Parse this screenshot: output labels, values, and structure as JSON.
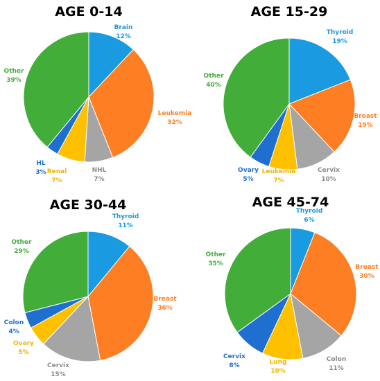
{
  "chart_data": [
    {
      "type": "pie",
      "title": "AGE 0-14",
      "slices": [
        {
          "label": "Brain",
          "value": 12,
          "pct_label": "12%",
          "color": "#1a9ae0",
          "text_color": "#1a9ae0"
        },
        {
          "label": "Leukemia",
          "value": 32,
          "pct_label": "32%",
          "color": "#fd7e23",
          "text_color": "#fd7e23"
        },
        {
          "label": "NHL",
          "value": 7,
          "pct_label": "7%",
          "color": "#a5a5a5",
          "text_color": "#8c8c8c"
        },
        {
          "label": "Renal",
          "value": 7,
          "pct_label": "7%",
          "color": "#ffc000",
          "text_color": "#f0b400"
        },
        {
          "label": "HL",
          "value": 3,
          "pct_label": "3%",
          "color": "#1f6fd1",
          "text_color": "#1f6fd1"
        },
        {
          "label": "Other",
          "value": 39,
          "pct_label": "39%",
          "color": "#43ad3a",
          "text_color": "#43ad3a"
        }
      ]
    },
    {
      "type": "pie",
      "title": "AGE 15-29",
      "slices": [
        {
          "label": "Thyroid",
          "value": 19,
          "pct_label": "19%",
          "color": "#1a9ae0",
          "text_color": "#1a9ae0"
        },
        {
          "label": "Breast",
          "value": 19,
          "pct_label": "19%",
          "color": "#fd7e23",
          "text_color": "#fd7e23"
        },
        {
          "label": "Cervix",
          "value": 10,
          "pct_label": "10%",
          "color": "#a5a5a5",
          "text_color": "#8c8c8c"
        },
        {
          "label": "Leukemia",
          "value": 7,
          "pct_label": "7%",
          "color": "#ffc000",
          "text_color": "#f0b400"
        },
        {
          "label": "Ovary",
          "value": 5,
          "pct_label": "5%",
          "color": "#1f6fd1",
          "text_color": "#1f6fd1"
        },
        {
          "label": "Other",
          "value": 40,
          "pct_label": "40%",
          "color": "#43ad3a",
          "text_color": "#43ad3a"
        }
      ]
    },
    {
      "type": "pie",
      "title": "AGE 30-44",
      "slices": [
        {
          "label": "Thyroid",
          "value": 11,
          "pct_label": "11%",
          "color": "#1a9ae0",
          "text_color": "#1a9ae0"
        },
        {
          "label": "Breast",
          "value": 36,
          "pct_label": "36%",
          "color": "#fd7e23",
          "text_color": "#fd7e23"
        },
        {
          "label": "Cervix",
          "value": 15,
          "pct_label": "15%",
          "color": "#a5a5a5",
          "text_color": "#8c8c8c"
        },
        {
          "label": "Ovary",
          "value": 5,
          "pct_label": "5%",
          "color": "#ffc000",
          "text_color": "#f0b400"
        },
        {
          "label": "Colon",
          "value": 4,
          "pct_label": "4%",
          "color": "#1f6fd1",
          "text_color": "#1f6fd1"
        },
        {
          "label": "Other",
          "value": 29,
          "pct_label": "29%",
          "color": "#43ad3a",
          "text_color": "#43ad3a"
        }
      ]
    },
    {
      "type": "pie",
      "title": "AGE 45-74",
      "slices": [
        {
          "label": "Thyroid",
          "value": 6,
          "pct_label": "6%",
          "color": "#1a9ae0",
          "text_color": "#1a9ae0"
        },
        {
          "label": "Breast",
          "value": 30,
          "pct_label": "30%",
          "color": "#fd7e23",
          "text_color": "#fd7e23"
        },
        {
          "label": "Colon",
          "value": 11,
          "pct_label": "11%",
          "color": "#a5a5a5",
          "text_color": "#8c8c8c"
        },
        {
          "label": "Lung",
          "value": 10,
          "pct_label": "10%",
          "color": "#ffc000",
          "text_color": "#f0b400"
        },
        {
          "label": "Cervix",
          "value": 8,
          "pct_label": "8%",
          "color": "#1f6fd1",
          "text_color": "#1f6fd1"
        },
        {
          "label": "Other",
          "value": 35,
          "pct_label": "35%",
          "color": "#43ad3a",
          "text_color": "#43ad3a"
        }
      ]
    }
  ]
}
